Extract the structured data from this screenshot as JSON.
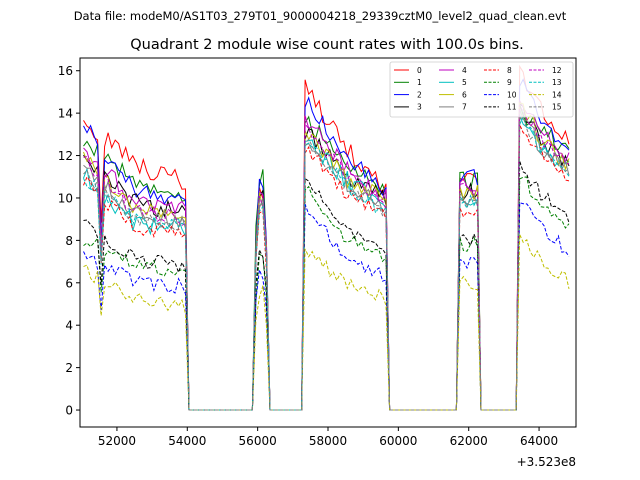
{
  "header": {
    "data_file": "Data file: modeM0/AS1T03_279T01_9000004218_29339cztM0_level2_quad_clean.evt"
  },
  "chart_data": {
    "type": "line",
    "title": "Quadrant 2 module wise count rates with 100.0s bins.",
    "xlabel": "",
    "ylabel": "",
    "x_offset_label": "+3.523e8",
    "xlim": [
      50950,
      65050
    ],
    "ylim": [
      -0.8,
      16.6
    ],
    "x_ticks": [
      52000,
      54000,
      56000,
      58000,
      60000,
      62000,
      64000
    ],
    "x_tick_labels": [
      "52000",
      "54000",
      "56000",
      "58000",
      "60000",
      "62000",
      "64000"
    ],
    "y_ticks": [
      0,
      2,
      4,
      6,
      8,
      10,
      12,
      14,
      16
    ],
    "y_tick_labels": [
      "0",
      "2",
      "4",
      "6",
      "8",
      "10",
      "12",
      "14",
      "16"
    ],
    "grid": false,
    "legend_position": "top-right",
    "segments": [
      {
        "t0": 51050,
        "t1": 53950,
        "shape": "orbit1"
      },
      {
        "t0": 55950,
        "t1": 56250,
        "shape": "spike"
      },
      {
        "t0": 57350,
        "t1": 59650,
        "shape": "orbit2"
      },
      {
        "t0": 61750,
        "t1": 62250,
        "shape": "short"
      },
      {
        "t0": 63450,
        "t1": 64850,
        "shape": "orbit3"
      }
    ],
    "series": [
      {
        "name": "0",
        "color": "#ff0000",
        "dash": "solid",
        "orbit1": [
          13.7,
          11.6,
          10.7
        ],
        "spike": [
          10.3
        ],
        "orbit2": [
          15.2,
          12.3,
          10.5
        ],
        "short": [
          11.2
        ],
        "orbit3": [
          15.9,
          13.8,
          12.8
        ]
      },
      {
        "name": "1",
        "color": "#008000",
        "dash": "solid",
        "orbit1": [
          12.6,
          10.9,
          10.0
        ],
        "spike": [
          11.0
        ],
        "orbit2": [
          13.8,
          11.6,
          10.1
        ],
        "short": [
          10.8
        ],
        "orbit3": [
          14.0,
          13.2,
          12.1
        ]
      },
      {
        "name": "2",
        "color": "#0000ff",
        "dash": "solid",
        "orbit1": [
          13.4,
          10.4,
          9.8
        ],
        "spike": [
          10.6
        ],
        "orbit2": [
          14.7,
          12.1,
          10.4
        ],
        "short": [
          11.0
        ],
        "orbit3": [
          15.5,
          13.4,
          12.4
        ]
      },
      {
        "name": "3",
        "color": "#000000",
        "dash": "solid",
        "orbit1": [
          11.6,
          9.8,
          9.2
        ],
        "spike": [
          10.0
        ],
        "orbit2": [
          13.2,
          11.1,
          9.9
        ],
        "short": [
          10.3
        ],
        "orbit3": [
          14.2,
          12.4,
          11.7
        ]
      },
      {
        "name": "4",
        "color": "#bf00bf",
        "dash": "solid",
        "orbit1": [
          12.3,
          9.9,
          9.4
        ],
        "spike": [
          10.1
        ],
        "orbit2": [
          13.7,
          11.4,
          10.0
        ],
        "short": [
          10.5
        ],
        "orbit3": [
          14.6,
          12.8,
          11.9
        ]
      },
      {
        "name": "5",
        "color": "#00bfbf",
        "dash": "solid",
        "orbit1": [
          11.2,
          8.8,
          8.6
        ],
        "spike": [
          9.6
        ],
        "orbit2": [
          12.8,
          10.9,
          9.6
        ],
        "short": [
          10.1
        ],
        "orbit3": [
          13.9,
          12.1,
          11.4
        ]
      },
      {
        "name": "6",
        "color": "#bfbf00",
        "dash": "solid",
        "orbit1": [
          11.9,
          9.6,
          9.0
        ],
        "spike": [
          9.9
        ],
        "orbit2": [
          13.4,
          11.0,
          9.8
        ],
        "short": [
          10.2
        ],
        "orbit3": [
          14.4,
          12.5,
          11.6
        ]
      },
      {
        "name": "7",
        "color": "#808080",
        "dash": "solid",
        "orbit1": [
          11.4,
          9.2,
          8.8
        ],
        "spike": [
          9.7
        ],
        "orbit2": [
          12.9,
          10.8,
          9.4
        ],
        "short": [
          9.9
        ],
        "orbit3": [
          14.0,
          12.2,
          11.3
        ]
      },
      {
        "name": "8",
        "color": "#ff0000",
        "dash": "dashed",
        "orbit1": [
          10.8,
          8.6,
          8.4
        ],
        "spike": [
          9.2
        ],
        "orbit2": [
          12.4,
          10.3,
          9.0
        ],
        "short": [
          9.4
        ],
        "orbit3": [
          13.6,
          11.8,
          11.0
        ]
      },
      {
        "name": "9",
        "color": "#008000",
        "dash": "dashed",
        "orbit1": [
          8.1,
          6.9,
          6.4
        ],
        "spike": [
          7.2
        ],
        "orbit2": [
          10.4,
          8.1,
          7.0
        ],
        "short": [
          7.8
        ],
        "orbit3": [
          11.1,
          9.5,
          8.6
        ]
      },
      {
        "name": "10",
        "color": "#0000ff",
        "dash": "dashed",
        "orbit1": [
          7.3,
          6.1,
          5.8
        ],
        "spike": [
          6.5
        ],
        "orbit2": [
          9.6,
          7.3,
          6.3
        ],
        "short": [
          7.0
        ],
        "orbit3": [
          10.0,
          8.6,
          7.4
        ]
      },
      {
        "name": "11",
        "color": "#000000",
        "dash": "dashed",
        "orbit1": [
          8.8,
          7.1,
          6.8
        ],
        "spike": [
          7.5
        ],
        "orbit2": [
          11.0,
          8.6,
          7.5
        ],
        "short": [
          8.1
        ],
        "orbit3": [
          11.6,
          10.0,
          9.1
        ]
      },
      {
        "name": "12",
        "color": "#bf00bf",
        "dash": "dashed",
        "orbit1": [
          11.8,
          9.4,
          9.0
        ],
        "spike": [
          9.9
        ],
        "orbit2": [
          13.3,
          11.2,
          9.8
        ],
        "short": [
          10.4
        ],
        "orbit3": [
          14.5,
          12.6,
          11.8
        ]
      },
      {
        "name": "13",
        "color": "#00bfbf",
        "dash": "dashed",
        "orbit1": [
          11.0,
          9.0,
          8.5
        ],
        "spike": [
          9.5
        ],
        "orbit2": [
          12.7,
          10.6,
          9.3
        ],
        "short": [
          9.8
        ],
        "orbit3": [
          13.8,
          12.0,
          11.2
        ]
      },
      {
        "name": "14",
        "color": "#bfbf00",
        "dash": "dashed",
        "orbit1": [
          6.6,
          5.3,
          4.9
        ],
        "spike": [
          5.6
        ],
        "orbit2": [
          7.6,
          6.0,
          5.2
        ],
        "short": [
          6.0
        ],
        "orbit3": [
          8.2,
          7.0,
          6.0
        ]
      },
      {
        "name": "15",
        "color": "#808080",
        "dash": "dashed",
        "orbit1": [
          11.1,
          9.1,
          8.7
        ],
        "spike": [
          9.6
        ],
        "orbit2": [
          12.8,
          10.7,
          9.4
        ],
        "short": [
          9.9
        ],
        "orbit3": [
          13.9,
          12.1,
          11.3
        ]
      }
    ]
  }
}
